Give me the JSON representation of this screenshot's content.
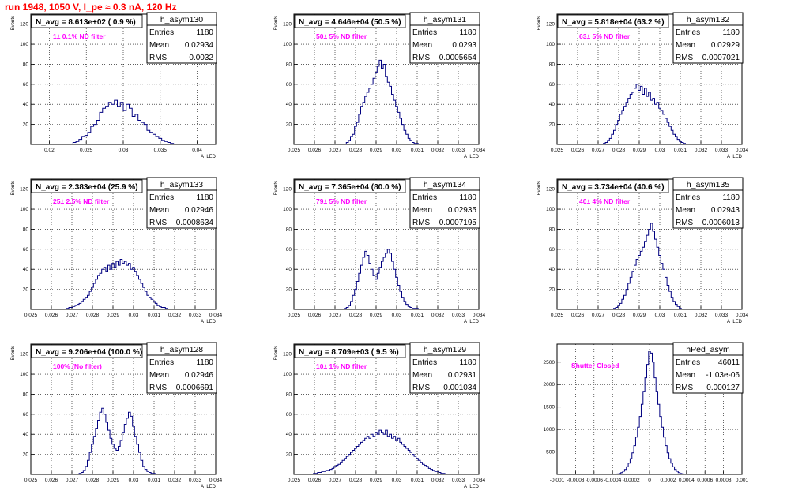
{
  "page": {
    "title": "run 1948,  1050 V, I_pe ≈ 0.3 nA, 120 Hz"
  },
  "colors": {
    "title": "#ff0000",
    "annotation": "#ff00ff",
    "histogram": "#000080",
    "grid": "#000000",
    "frame": "#000000",
    "background": "#ffffff"
  },
  "stats_labels": {
    "entries": "Entries",
    "mean": "Mean",
    "rms": "RMS"
  },
  "panels": [
    {
      "id": "h_asym130",
      "label": "N_avg = 8.613e+02 ( 0.9 %)",
      "annotation": "1± 0.1% ND filter",
      "stats": {
        "entries": "1180",
        "mean": "0.02934",
        "rms": "0.0032"
      },
      "x_axis_label": "A_LED",
      "y_axis_label": "Events",
      "xticks": [
        "0.02",
        "0.025",
        "0.03",
        "0.035",
        "0.04"
      ],
      "yticks": [
        "20",
        "40",
        "60",
        "80",
        "100",
        "120"
      ]
    },
    {
      "id": "h_asym131",
      "label": "N_avg = 4.646e+04 (50.5 %)",
      "annotation": "50± 5% ND filter",
      "stats": {
        "entries": "1180",
        "mean": "0.0293",
        "rms": "0.0005654"
      },
      "x_axis_label": "A_LED",
      "y_axis_label": "Events",
      "xticks": [
        "0.025",
        "0.026",
        "0.027",
        "0.028",
        "0.029",
        "0.03",
        "0.031",
        "0.032",
        "0.033",
        "0.034"
      ],
      "yticks": [
        "20",
        "40",
        "60",
        "80",
        "100",
        "120"
      ]
    },
    {
      "id": "h_asym132",
      "label": "N_avg = 5.818e+04 (63.2 %)",
      "annotation": "63± 5% ND filter",
      "stats": {
        "entries": "1180",
        "mean": "0.02929",
        "rms": "0.0007021"
      },
      "x_axis_label": "A_LED",
      "y_axis_label": "Events",
      "xticks": [
        "0.025",
        "0.026",
        "0.027",
        "0.028",
        "0.029",
        "0.03",
        "0.031",
        "0.032",
        "0.033",
        "0.034"
      ],
      "yticks": [
        "20",
        "40",
        "60",
        "80",
        "100",
        "120"
      ]
    },
    {
      "id": "h_asym133",
      "label": "N_avg = 2.383e+04 (25.9 %)",
      "annotation": "25± 2.5% ND filter",
      "stats": {
        "entries": "1180",
        "mean": "0.02946",
        "rms": "0.0008634"
      },
      "x_axis_label": "A_LED",
      "y_axis_label": "Events",
      "xticks": [
        "0.025",
        "0.026",
        "0.027",
        "0.028",
        "0.029",
        "0.03",
        "0.031",
        "0.032",
        "0.033",
        "0.034"
      ],
      "yticks": [
        "20",
        "40",
        "60",
        "80",
        "100",
        "120"
      ]
    },
    {
      "id": "h_asym134",
      "label": "N_avg = 7.365e+04 (80.0 %)",
      "annotation": "79± 5% ND filter",
      "stats": {
        "entries": "1180",
        "mean": "0.02935",
        "rms": "0.0007195"
      },
      "x_axis_label": "A_LED",
      "y_axis_label": "Events",
      "xticks": [
        "0.025",
        "0.026",
        "0.027",
        "0.028",
        "0.029",
        "0.03",
        "0.031",
        "0.032",
        "0.033",
        "0.034"
      ],
      "yticks": [
        "20",
        "40",
        "60",
        "80",
        "100",
        "120"
      ]
    },
    {
      "id": "h_asym135",
      "label": "N_avg = 3.734e+04 (40.6 %)",
      "annotation": "40± 4% ND filter",
      "stats": {
        "entries": "1180",
        "mean": "0.02943",
        "rms": "0.0006013"
      },
      "x_axis_label": "A_LED",
      "y_axis_label": "Events",
      "xticks": [
        "0.025",
        "0.026",
        "0.027",
        "0.028",
        "0.029",
        "0.03",
        "0.031",
        "0.032",
        "0.033",
        "0.034"
      ],
      "yticks": [
        "20",
        "40",
        "60",
        "80",
        "100",
        "120"
      ]
    },
    {
      "id": "h_asym128",
      "label": "N_avg = 9.206e+04 (100.0 %)",
      "annotation": "100% (No filter)",
      "stats": {
        "entries": "1180",
        "mean": "0.02946",
        "rms": "0.0006691"
      },
      "x_axis_label": "A_LED",
      "y_axis_label": "Events",
      "xticks": [
        "0.025",
        "0.026",
        "0.027",
        "0.028",
        "0.029",
        "0.03",
        "0.031",
        "0.032",
        "0.033",
        "0.034"
      ],
      "yticks": [
        "20",
        "40",
        "60",
        "80",
        "100",
        "120"
      ]
    },
    {
      "id": "h_asym129",
      "label": "N_avg = 8.709e+03 ( 9.5 %)",
      "annotation": "10± 1% ND filter",
      "stats": {
        "entries": "1180",
        "mean": "0.02931",
        "rms": "0.001034"
      },
      "x_axis_label": "A_LED",
      "y_axis_label": "Events",
      "xticks": [
        "0.025",
        "0.026",
        "0.027",
        "0.028",
        "0.029",
        "0.03",
        "0.031",
        "0.032",
        "0.033",
        "0.034"
      ],
      "yticks": [
        "20",
        "40",
        "60",
        "80",
        "100",
        "120"
      ]
    },
    {
      "id": "hPed_asym",
      "label": "",
      "annotation": "Shutter Closed",
      "stats": {
        "entries": "46011",
        "mean": "-1.03e-06",
        "rms": "0.000127"
      },
      "x_axis_label": "",
      "y_axis_label": "",
      "xticks": [
        "-0.001",
        "-0.0008",
        "-0.0006",
        "-0.0004",
        "-0.0002",
        "0",
        "0.0002",
        "0.0004",
        "0.0006",
        "0.0008",
        "0.001"
      ],
      "yticks": [
        "500",
        "1000",
        "1500",
        "2000",
        "2500"
      ]
    }
  ],
  "chart_data": [
    {
      "type": "histogram",
      "title": "h_asym130",
      "xlabel": "A_LED",
      "ylabel": "Events",
      "xlim": [
        0.0175,
        0.0425
      ],
      "ylim": [
        0,
        130
      ],
      "grid": true,
      "legend_position": "top-right",
      "bin_centers": [
        0.0234,
        0.0238,
        0.0242,
        0.0246,
        0.025,
        0.0254,
        0.0258,
        0.0262,
        0.0266,
        0.027,
        0.0274,
        0.0278,
        0.0282,
        0.0286,
        0.029,
        0.0294,
        0.0298,
        0.0302,
        0.0306,
        0.031,
        0.0314,
        0.0318,
        0.0322,
        0.0326,
        0.033,
        0.0334,
        0.0338,
        0.0342,
        0.0346,
        0.035,
        0.0354,
        0.0358,
        0.0362,
        0.0366
      ],
      "counts": [
        2,
        3,
        5,
        8,
        9,
        12,
        18,
        20,
        24,
        32,
        36,
        38,
        42,
        40,
        44,
        38,
        42,
        34,
        40,
        36,
        28,
        30,
        24,
        22,
        20,
        14,
        12,
        10,
        8,
        6,
        4,
        3,
        2,
        1
      ]
    },
    {
      "type": "histogram",
      "title": "h_asym131",
      "xlabel": "A_LED",
      "ylabel": "Events",
      "xlim": [
        0.025,
        0.034
      ],
      "ylim": [
        0,
        130
      ],
      "grid": true,
      "legend_position": "top-right",
      "bin_centers": [
        0.0276,
        0.0277,
        0.0278,
        0.0279,
        0.028,
        0.0281,
        0.0282,
        0.0283,
        0.0284,
        0.0285,
        0.0286,
        0.0287,
        0.0288,
        0.0289,
        0.029,
        0.0291,
        0.0292,
        0.0293,
        0.0294,
        0.0295,
        0.0296,
        0.0297,
        0.0298,
        0.0299,
        0.03,
        0.0301,
        0.0302,
        0.0303,
        0.0304,
        0.0305,
        0.0306,
        0.0307,
        0.0308,
        0.0309,
        0.031
      ],
      "counts": [
        2,
        4,
        8,
        10,
        18,
        22,
        30,
        38,
        42,
        48,
        52,
        56,
        60,
        66,
        72,
        78,
        84,
        76,
        80,
        68,
        62,
        58,
        50,
        44,
        38,
        32,
        26,
        20,
        14,
        10,
        6,
        4,
        2,
        1,
        1
      ]
    },
    {
      "type": "histogram",
      "title": "h_asym132",
      "xlabel": "A_LED",
      "ylabel": "Events",
      "xlim": [
        0.025,
        0.034
      ],
      "ylim": [
        0,
        130
      ],
      "grid": true,
      "legend_position": "top-right",
      "bin_centers": [
        0.0273,
        0.0274,
        0.0275,
        0.0276,
        0.0277,
        0.0278,
        0.0279,
        0.028,
        0.0281,
        0.0282,
        0.0283,
        0.0284,
        0.0285,
        0.0286,
        0.0287,
        0.0288,
        0.0289,
        0.029,
        0.0291,
        0.0292,
        0.0293,
        0.0294,
        0.0295,
        0.0296,
        0.0297,
        0.0298,
        0.0299,
        0.03,
        0.0301,
        0.0302,
        0.0303,
        0.0304,
        0.0305,
        0.0306,
        0.0307,
        0.0308,
        0.0309,
        0.031,
        0.0311,
        0.0312
      ],
      "counts": [
        1,
        2,
        4,
        6,
        10,
        14,
        20,
        24,
        30,
        34,
        38,
        42,
        46,
        50,
        52,
        56,
        60,
        54,
        58,
        50,
        56,
        48,
        52,
        44,
        46,
        40,
        42,
        36,
        34,
        30,
        26,
        22,
        18,
        14,
        10,
        8,
        5,
        3,
        2,
        1
      ]
    },
    {
      "type": "histogram",
      "title": "h_asym133",
      "xlabel": "A_LED",
      "ylabel": "Events",
      "xlim": [
        0.025,
        0.034
      ],
      "ylim": [
        0,
        130
      ],
      "grid": true,
      "legend_position": "top-right",
      "bin_centers": [
        0.0268,
        0.0269,
        0.027,
        0.0271,
        0.0272,
        0.0273,
        0.0274,
        0.0275,
        0.0276,
        0.0277,
        0.0278,
        0.0279,
        0.028,
        0.0281,
        0.0282,
        0.0283,
        0.0284,
        0.0285,
        0.0286,
        0.0287,
        0.0288,
        0.0289,
        0.029,
        0.0291,
        0.0292,
        0.0293,
        0.0294,
        0.0295,
        0.0296,
        0.0297,
        0.0298,
        0.0299,
        0.03,
        0.0301,
        0.0302,
        0.0303,
        0.0304,
        0.0305,
        0.0306,
        0.0307,
        0.0308,
        0.0309,
        0.031,
        0.0311,
        0.0312,
        0.0313,
        0.0314,
        0.0315,
        0.0316
      ],
      "counts": [
        1,
        2,
        2,
        3,
        4,
        5,
        6,
        8,
        10,
        12,
        14,
        18,
        22,
        26,
        30,
        34,
        36,
        40,
        42,
        38,
        44,
        40,
        46,
        42,
        48,
        44,
        50,
        46,
        48,
        44,
        46,
        40,
        42,
        38,
        34,
        30,
        26,
        22,
        18,
        14,
        12,
        10,
        8,
        6,
        4,
        3,
        2,
        2,
        1
      ]
    },
    {
      "type": "histogram",
      "title": "h_asym134",
      "xlabel": "A_LED",
      "ylabel": "Events",
      "xlim": [
        0.025,
        0.034
      ],
      "ylim": [
        0,
        130
      ],
      "grid": true,
      "legend_position": "top-right",
      "bin_centers": [
        0.0275,
        0.0276,
        0.0277,
        0.0278,
        0.0279,
        0.028,
        0.0281,
        0.0282,
        0.0283,
        0.0284,
        0.0285,
        0.0286,
        0.0287,
        0.0288,
        0.0289,
        0.029,
        0.0291,
        0.0292,
        0.0293,
        0.0294,
        0.0295,
        0.0296,
        0.0297,
        0.0298,
        0.0299,
        0.03,
        0.0301,
        0.0302,
        0.0303,
        0.0304,
        0.0305,
        0.0306,
        0.0307,
        0.0308,
        0.0309,
        0.031
      ],
      "counts": [
        1,
        2,
        4,
        8,
        14,
        20,
        28,
        36,
        44,
        52,
        58,
        54,
        46,
        40,
        34,
        30,
        36,
        42,
        48,
        52,
        56,
        60,
        56,
        48,
        40,
        32,
        24,
        18,
        12,
        8,
        5,
        3,
        2,
        1,
        1,
        1
      ]
    },
    {
      "type": "histogram",
      "title": "h_asym135",
      "xlabel": "A_LED",
      "ylabel": "Events",
      "xlim": [
        0.025,
        0.034
      ],
      "ylim": [
        0,
        130
      ],
      "grid": true,
      "legend_position": "top-right",
      "bin_centers": [
        0.0278,
        0.0279,
        0.028,
        0.0281,
        0.0282,
        0.0283,
        0.0284,
        0.0285,
        0.0286,
        0.0287,
        0.0288,
        0.0289,
        0.029,
        0.0291,
        0.0292,
        0.0293,
        0.0294,
        0.0295,
        0.0296,
        0.0297,
        0.0298,
        0.0299,
        0.03,
        0.0301,
        0.0302,
        0.0303,
        0.0304,
        0.0305,
        0.0306,
        0.0307,
        0.0308,
        0.0309,
        0.031
      ],
      "counts": [
        1,
        2,
        4,
        6,
        10,
        14,
        20,
        26,
        32,
        38,
        44,
        50,
        54,
        58,
        62,
        68,
        74,
        80,
        86,
        78,
        70,
        62,
        54,
        46,
        40,
        32,
        24,
        18,
        12,
        8,
        5,
        3,
        1
      ]
    },
    {
      "type": "histogram",
      "title": "h_asym128",
      "xlabel": "A_LED",
      "ylabel": "Events",
      "xlim": [
        0.025,
        0.034
      ],
      "ylim": [
        0,
        130
      ],
      "grid": true,
      "legend_position": "top-right",
      "bin_centers": [
        0.0274,
        0.0275,
        0.0276,
        0.0277,
        0.0278,
        0.0279,
        0.028,
        0.0281,
        0.0282,
        0.0283,
        0.0284,
        0.0285,
        0.0286,
        0.0287,
        0.0288,
        0.0289,
        0.029,
        0.0291,
        0.0292,
        0.0293,
        0.0294,
        0.0295,
        0.0296,
        0.0297,
        0.0298,
        0.0299,
        0.03,
        0.0301,
        0.0302,
        0.0303,
        0.0304,
        0.0305,
        0.0306,
        0.0307,
        0.0308,
        0.0309,
        0.031
      ],
      "counts": [
        1,
        2,
        4,
        8,
        14,
        22,
        30,
        38,
        46,
        54,
        62,
        66,
        60,
        52,
        44,
        36,
        30,
        26,
        24,
        28,
        34,
        42,
        50,
        56,
        62,
        58,
        48,
        38,
        30,
        22,
        14,
        8,
        5,
        3,
        2,
        1,
        1
      ]
    },
    {
      "type": "histogram",
      "title": "h_asym129",
      "xlabel": "A_LED",
      "ylabel": "Events",
      "xlim": [
        0.025,
        0.034
      ],
      "ylim": [
        0,
        130
      ],
      "grid": true,
      "legend_position": "top-right",
      "bin_centers": [
        0.026,
        0.0261,
        0.0262,
        0.0263,
        0.0264,
        0.0265,
        0.0266,
        0.0267,
        0.0268,
        0.0269,
        0.027,
        0.0271,
        0.0272,
        0.0273,
        0.0274,
        0.0275,
        0.0276,
        0.0277,
        0.0278,
        0.0279,
        0.028,
        0.0281,
        0.0282,
        0.0283,
        0.0284,
        0.0285,
        0.0286,
        0.0287,
        0.0288,
        0.0289,
        0.029,
        0.0291,
        0.0292,
        0.0293,
        0.0294,
        0.0295,
        0.0296,
        0.0297,
        0.0298,
        0.0299,
        0.03,
        0.0301,
        0.0302,
        0.0303,
        0.0304,
        0.0305,
        0.0306,
        0.0307,
        0.0308,
        0.0309,
        0.031,
        0.0311,
        0.0312,
        0.0313,
        0.0314,
        0.0315,
        0.0316,
        0.0317,
        0.0318,
        0.0319,
        0.032,
        0.0321,
        0.0322,
        0.0323
      ],
      "counts": [
        1,
        1,
        2,
        2,
        3,
        3,
        4,
        4,
        5,
        6,
        8,
        9,
        10,
        12,
        14,
        16,
        18,
        20,
        22,
        24,
        26,
        28,
        30,
        32,
        34,
        36,
        38,
        36,
        40,
        38,
        42,
        40,
        44,
        42,
        40,
        44,
        38,
        40,
        36,
        38,
        34,
        36,
        32,
        30,
        28,
        26,
        24,
        22,
        20,
        18,
        16,
        14,
        12,
        10,
        9,
        8,
        6,
        5,
        4,
        3,
        3,
        2,
        1,
        1
      ]
    },
    {
      "type": "histogram",
      "title": "hPed_asym",
      "xlabel": "",
      "ylabel": "",
      "xlim": [
        -0.001,
        0.001
      ],
      "ylim": [
        0,
        2900
      ],
      "grid": true,
      "legend_position": "top-right",
      "bin_centers": [
        -0.00036,
        -0.00034,
        -0.00032,
        -0.0003,
        -0.00028,
        -0.00026,
        -0.00024,
        -0.00022,
        -0.0002,
        -0.00018,
        -0.00016,
        -0.00014,
        -0.00012,
        -0.0001,
        -8e-05,
        -6e-05,
        -4e-05,
        -2e-05,
        0,
        2e-05,
        4e-05,
        6e-05,
        8e-05,
        0.0001,
        0.00012,
        0.00014,
        0.00016,
        0.00018,
        0.0002,
        0.00022,
        0.00024,
        0.00026,
        0.00028,
        0.0003,
        0.00032,
        0.00034,
        0.00036
      ],
      "counts": [
        5,
        10,
        20,
        40,
        70,
        110,
        170,
        250,
        350,
        480,
        640,
        830,
        1050,
        1290,
        1560,
        1850,
        2150,
        2450,
        2750,
        2700,
        2500,
        2150,
        1850,
        1560,
        1290,
        1050,
        830,
        640,
        480,
        350,
        250,
        170,
        110,
        70,
        40,
        20,
        10
      ]
    }
  ]
}
